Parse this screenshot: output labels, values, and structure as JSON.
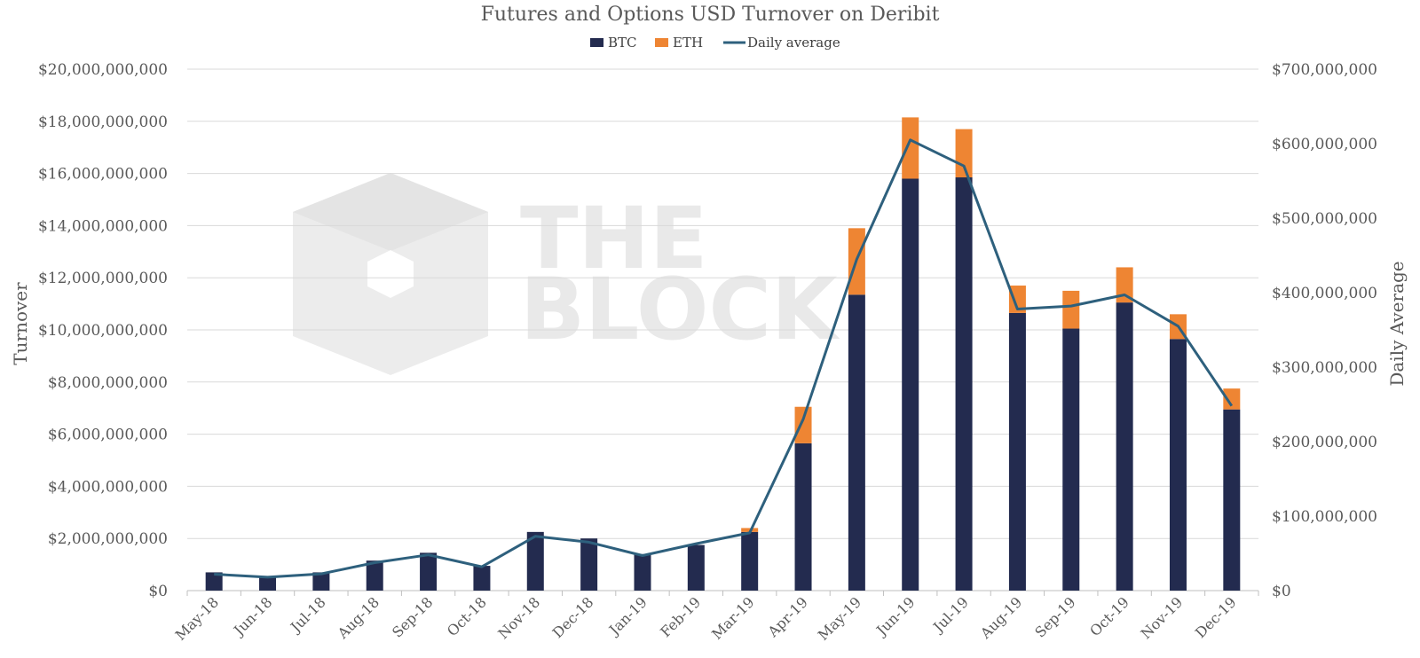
{
  "chart_data": {
    "type": "bar",
    "stacked": true,
    "title": "Futures and Options USD Turnover on Deribit",
    "ylabel": "Turnover",
    "y2label": "Daily Average",
    "categories": [
      "May-18",
      "Jun-18",
      "Jul-18",
      "Aug-18",
      "Sep-18",
      "Oct-18",
      "Nov-18",
      "Dec-18",
      "Jan-19",
      "Feb-19",
      "Mar-19",
      "Apr-19",
      "May-19",
      "Jun-19",
      "Jul-19",
      "Aug-19",
      "Sep-19",
      "Oct-19",
      "Nov-19",
      "Dec-19"
    ],
    "series": [
      {
        "name": "BTC",
        "type": "bar",
        "axis": "left",
        "color": "#232b4f",
        "values": [
          700000000,
          550000000,
          700000000,
          1150000000,
          1450000000,
          950000000,
          2250000000,
          2000000000,
          1400000000,
          1750000000,
          2250000000,
          5650000000,
          11350000000,
          15800000000,
          15850000000,
          10650000000,
          10050000000,
          11050000000,
          9650000000,
          6950000000
        ]
      },
      {
        "name": "ETH",
        "type": "bar",
        "axis": "left",
        "color": "#ee8533",
        "values": [
          0,
          0,
          0,
          0,
          0,
          0,
          0,
          0,
          0,
          0,
          150000000,
          1400000000,
          2550000000,
          2350000000,
          1850000000,
          1050000000,
          1450000000,
          1350000000,
          950000000,
          800000000
        ]
      },
      {
        "name": "Daily average",
        "type": "line",
        "axis": "right",
        "color": "#2e607d",
        "values": [
          22000000,
          18000000,
          22500000,
          37500000,
          48000000,
          32000000,
          73000000,
          65000000,
          47000000,
          63000000,
          77500000,
          230000000,
          445000000,
          605000000,
          570000000,
          378000000,
          382000000,
          397000000,
          355000000,
          248000000
        ]
      }
    ],
    "ylim": [
      0,
      20000000000
    ],
    "y2lim": [
      0,
      700000000
    ],
    "yticks": [
      "$0",
      "$2,000,000,000",
      "$4,000,000,000",
      "$6,000,000,000",
      "$8,000,000,000",
      "$10,000,000,000",
      "$12,000,000,000",
      "$14,000,000,000",
      "$16,000,000,000",
      "$18,000,000,000",
      "$20,000,000,000"
    ],
    "y2ticks": [
      "$0",
      "$100,000,000",
      "$200,000,000",
      "$300,000,000",
      "$400,000,000",
      "$500,000,000",
      "$600,000,000",
      "$700,000,000"
    ],
    "grid": true,
    "legend_position": "top-center"
  },
  "watermark": {
    "line1": "THE",
    "line2": "BLOCK"
  },
  "colors": {
    "grid": "#d9d9d9",
    "axis": "#bfbfbf",
    "text": "#595959",
    "watermark": "#e9e9e9"
  }
}
